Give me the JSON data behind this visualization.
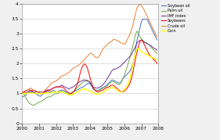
{
  "title": "",
  "xlim": [
    0,
    96
  ],
  "ylim": [
    0,
    4
  ],
  "yticks": [
    0,
    0.5,
    1,
    1.5,
    2,
    2.5,
    3,
    3.5,
    4
  ],
  "xtick_labels": [
    "2000",
    "2001",
    "2002",
    "2003",
    "2004",
    "2005",
    "2006",
    "2007",
    "2008"
  ],
  "xtick_positions": [
    0,
    12,
    24,
    36,
    48,
    60,
    72,
    84,
    96
  ],
  "series": {
    "Soybean oil": {
      "color": "#4472C4",
      "lw": 0.7
    },
    "Palm oil": {
      "color": "#70AD47",
      "lw": 0.7
    },
    "IMF index": {
      "color": "#7030A0",
      "lw": 0.7
    },
    "Soybeans": {
      "color": "#FF0000",
      "lw": 0.7
    },
    "Crude oil": {
      "color": "#ED7D31",
      "lw": 0.7
    },
    "Corn": {
      "color": "#FFFF00",
      "lw": 1.0
    }
  },
  "bg_color": "#F0F0F0",
  "plot_bg": "#FFFFFF",
  "grid_color": "#C8C8C8",
  "figsize": [
    2.81,
    1.79
  ],
  "dpi": 100,
  "soybean_oil": [
    0.88,
    0.9,
    0.92,
    0.95,
    1.05,
    1.08,
    1.1,
    1.08,
    1.05,
    1.02,
    0.98,
    0.95,
    0.92,
    0.9,
    0.95,
    1.0,
    1.02,
    1.05,
    1.08,
    1.05,
    1.05,
    1.08,
    1.1,
    1.08,
    1.05,
    1.05,
    1.08,
    1.1,
    1.12,
    1.1,
    1.08,
    1.05,
    1.0,
    0.98,
    1.0,
    1.02,
    1.05,
    1.08,
    1.1,
    1.12,
    1.15,
    1.18,
    1.2,
    1.22,
    1.25,
    1.3,
    1.32,
    1.35,
    1.3,
    1.25,
    1.15,
    1.12,
    1.1,
    1.1,
    1.12,
    1.15,
    1.18,
    1.2,
    1.22,
    1.25,
    1.3,
    1.35,
    1.4,
    1.45,
    1.45,
    1.42,
    1.4,
    1.38,
    1.35,
    1.35,
    1.4,
    1.5,
    1.55,
    1.6,
    1.65,
    1.7,
    1.75,
    1.85,
    2.0,
    2.2,
    2.5,
    2.8,
    3.0,
    3.2,
    3.4,
    3.5,
    3.5,
    3.5,
    3.5,
    3.4,
    3.3,
    3.2,
    3.1,
    3.0,
    2.9,
    2.8
  ],
  "palm_oil": [
    1.05,
    1.0,
    0.92,
    0.82,
    0.75,
    0.68,
    0.65,
    0.62,
    0.6,
    0.62,
    0.65,
    0.68,
    0.7,
    0.72,
    0.75,
    0.78,
    0.82,
    0.85,
    0.88,
    0.88,
    0.9,
    0.92,
    0.95,
    0.98,
    1.0,
    1.0,
    1.02,
    1.05,
    1.08,
    1.05,
    1.02,
    1.0,
    0.98,
    0.95,
    0.98,
    1.0,
    1.05,
    1.1,
    1.15,
    1.2,
    1.25,
    1.3,
    1.35,
    1.38,
    1.4,
    1.42,
    1.45,
    1.42,
    1.38,
    1.3,
    1.2,
    1.15,
    1.1,
    1.08,
    1.1,
    1.12,
    1.15,
    1.18,
    1.2,
    1.22,
    1.25,
    1.3,
    1.35,
    1.4,
    1.4,
    1.38,
    1.35,
    1.32,
    1.3,
    1.32,
    1.38,
    1.5,
    1.6,
    1.75,
    1.9,
    2.05,
    2.2,
    2.4,
    2.6,
    2.8,
    3.0,
    3.1,
    3.0,
    2.9,
    2.85,
    2.8,
    2.75,
    2.7,
    2.7,
    2.65,
    2.6,
    2.55,
    2.5,
    2.45,
    2.4,
    2.35
  ],
  "imf_index": [
    1.0,
    1.0,
    1.02,
    1.02,
    1.05,
    1.05,
    1.05,
    1.05,
    1.05,
    1.05,
    1.05,
    1.05,
    1.05,
    1.05,
    1.05,
    1.05,
    1.08,
    1.1,
    1.12,
    1.12,
    1.12,
    1.15,
    1.18,
    1.2,
    1.22,
    1.22,
    1.22,
    1.25,
    1.28,
    1.25,
    1.22,
    1.2,
    1.18,
    1.15,
    1.18,
    1.2,
    1.22,
    1.25,
    1.3,
    1.35,
    1.38,
    1.4,
    1.42,
    1.45,
    1.45,
    1.45,
    1.42,
    1.4,
    1.35,
    1.3,
    1.22,
    1.2,
    1.18,
    1.18,
    1.2,
    1.22,
    1.25,
    1.3,
    1.35,
    1.42,
    1.5,
    1.58,
    1.65,
    1.75,
    1.8,
    1.82,
    1.82,
    1.85,
    1.88,
    1.9,
    1.95,
    2.0,
    2.05,
    2.1,
    2.15,
    2.2,
    2.25,
    2.3,
    2.4,
    2.5,
    2.6,
    2.7,
    2.75,
    2.78,
    2.8,
    2.75,
    2.72,
    2.7,
    2.68,
    2.65,
    2.62,
    2.6,
    2.55,
    2.52,
    2.5,
    2.45
  ],
  "soybeans": [
    1.05,
    1.05,
    1.08,
    1.1,
    1.12,
    1.12,
    1.1,
    1.1,
    1.1,
    1.1,
    1.08,
    1.05,
    1.02,
    1.0,
    1.0,
    1.02,
    1.05,
    1.08,
    1.1,
    1.1,
    1.12,
    1.15,
    1.18,
    1.2,
    1.22,
    1.22,
    1.22,
    1.22,
    1.22,
    1.2,
    1.15,
    1.1,
    1.05,
    1.02,
    1.0,
    1.0,
    1.05,
    1.1,
    1.2,
    1.3,
    1.5,
    1.7,
    1.85,
    1.95,
    2.0,
    1.95,
    1.85,
    1.7,
    1.5,
    1.35,
    1.2,
    1.12,
    1.08,
    1.05,
    1.05,
    1.08,
    1.1,
    1.12,
    1.15,
    1.18,
    1.2,
    1.22,
    1.25,
    1.28,
    1.28,
    1.25,
    1.2,
    1.18,
    1.12,
    1.08,
    1.05,
    1.05,
    1.08,
    1.12,
    1.18,
    1.25,
    1.35,
    1.5,
    1.7,
    1.95,
    2.2,
    2.4,
    2.6,
    2.75,
    2.8,
    2.75,
    2.65,
    2.55,
    2.45,
    2.35,
    2.28,
    2.22,
    2.18,
    2.12,
    2.08,
    2.0
  ],
  "crude_oil": [
    1.0,
    1.02,
    1.05,
    1.08,
    1.12,
    1.15,
    1.18,
    1.15,
    1.12,
    1.1,
    1.08,
    1.05,
    1.0,
    0.98,
    1.0,
    1.05,
    1.1,
    1.15,
    1.2,
    1.25,
    1.3,
    1.35,
    1.38,
    1.4,
    1.42,
    1.45,
    1.5,
    1.55,
    1.58,
    1.6,
    1.62,
    1.65,
    1.68,
    1.7,
    1.75,
    1.8,
    1.85,
    1.88,
    1.9,
    1.92,
    1.95,
    2.0,
    2.05,
    2.1,
    2.15,
    2.2,
    2.25,
    2.3,
    2.35,
    2.35,
    2.3,
    2.25,
    2.2,
    2.2,
    2.25,
    2.3,
    2.4,
    2.5,
    2.55,
    2.6,
    2.65,
    2.7,
    2.72,
    2.75,
    2.8,
    2.82,
    2.8,
    2.78,
    2.75,
    2.72,
    2.7,
    2.68,
    2.65,
    2.7,
    2.8,
    2.9,
    3.0,
    3.15,
    3.3,
    3.5,
    3.7,
    3.9,
    3.95,
    4.0,
    3.95,
    3.88,
    3.8,
    3.7,
    3.6,
    3.5,
    3.4,
    3.3,
    3.2,
    3.1,
    3.0,
    2.9
  ],
  "corn": [
    1.0,
    1.0,
    1.0,
    1.0,
    1.02,
    1.02,
    1.02,
    1.02,
    1.0,
    1.0,
    1.0,
    1.0,
    1.0,
    1.0,
    1.0,
    1.0,
    1.0,
    1.02,
    1.02,
    1.02,
    1.02,
    1.05,
    1.05,
    1.05,
    1.05,
    1.05,
    1.05,
    1.05,
    1.05,
    1.05,
    1.02,
    1.0,
    0.98,
    0.95,
    0.95,
    0.95,
    0.98,
    1.0,
    1.02,
    1.05,
    1.08,
    1.1,
    1.12,
    1.15,
    1.15,
    1.15,
    1.12,
    1.1,
    1.08,
    1.05,
    1.02,
    1.0,
    0.98,
    0.98,
    0.98,
    1.0,
    1.02,
    1.05,
    1.08,
    1.1,
    1.12,
    1.15,
    1.18,
    1.2,
    1.2,
    1.18,
    1.15,
    1.12,
    1.08,
    1.05,
    1.05,
    1.08,
    1.12,
    1.18,
    1.25,
    1.35,
    1.5,
    1.7,
    1.95,
    2.2,
    2.4,
    2.5,
    2.5,
    2.45,
    2.42,
    2.38,
    2.35,
    2.32,
    2.3,
    2.28,
    2.25,
    2.22,
    2.2,
    2.18,
    2.15,
    2.12
  ]
}
